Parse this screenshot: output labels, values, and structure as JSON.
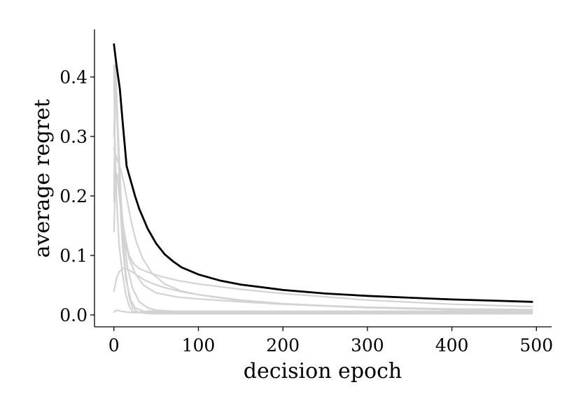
{
  "chart_data": {
    "type": "line",
    "title": "",
    "xlabel": "decision epoch",
    "ylabel": "average regret",
    "xlim": [
      -23,
      518
    ],
    "ylim": [
      -0.02,
      0.48
    ],
    "xticks": [
      0,
      100,
      200,
      300,
      400,
      500
    ],
    "xtick_labels": [
      "0",
      "100",
      "200",
      "300",
      "400",
      "500"
    ],
    "yticks": [
      0.0,
      0.1,
      0.2,
      0.3,
      0.4
    ],
    "ytick_labels": [
      "0.0",
      "0.1",
      "0.2",
      "0.3",
      "0.4"
    ],
    "grid": false,
    "legend": "none",
    "colors": {
      "main": "#000000",
      "background_runs": "#d3d3d3"
    },
    "main_series": {
      "x": [
        0,
        3,
        7,
        10,
        15,
        20,
        25,
        30,
        40,
        50,
        60,
        70,
        80,
        100,
        125,
        150,
        200,
        250,
        300,
        350,
        400,
        450,
        495
      ],
      "y": [
        0.455,
        0.42,
        0.38,
        0.33,
        0.25,
        0.225,
        0.2,
        0.178,
        0.145,
        0.12,
        0.102,
        0.09,
        0.08,
        0.068,
        0.058,
        0.051,
        0.042,
        0.036,
        0.032,
        0.029,
        0.026,
        0.024,
        0.022
      ]
    },
    "background_series": [
      {
        "x": [
          0,
          2,
          4,
          7,
          10,
          14,
          18,
          22,
          28,
          35,
          45,
          60,
          100,
          200,
          300,
          400,
          495
        ],
        "y": [
          0.2,
          0.41,
          0.34,
          0.24,
          0.14,
          0.07,
          0.03,
          0.012,
          0.005,
          0.003,
          0.002,
          0.002,
          0.002,
          0.002,
          0.002,
          0.002,
          0.002
        ]
      },
      {
        "x": [
          0,
          2,
          4,
          7,
          10,
          14,
          20,
          25,
          35,
          50,
          80,
          150,
          300,
          495
        ],
        "y": [
          0.38,
          0.42,
          0.32,
          0.2,
          0.12,
          0.06,
          0.025,
          0.012,
          0.006,
          0.004,
          0.004,
          0.004,
          0.004,
          0.004
        ]
      },
      {
        "x": [
          0,
          2,
          5,
          8,
          12,
          16,
          22,
          30,
          40,
          50,
          70,
          100,
          200,
          300,
          495
        ],
        "y": [
          0.3,
          0.41,
          0.3,
          0.2,
          0.13,
          0.08,
          0.045,
          0.022,
          0.012,
          0.008,
          0.006,
          0.006,
          0.006,
          0.006,
          0.006
        ]
      },
      {
        "x": [
          0,
          2,
          4,
          8,
          12,
          18,
          25,
          35,
          50,
          75,
          100,
          150,
          200,
          300,
          400,
          495
        ],
        "y": [
          0.14,
          0.24,
          0.23,
          0.18,
          0.13,
          0.095,
          0.07,
          0.05,
          0.037,
          0.03,
          0.027,
          0.022,
          0.018,
          0.013,
          0.01,
          0.009
        ]
      },
      {
        "x": [
          0,
          2,
          4,
          6,
          8,
          10,
          14,
          18,
          24,
          30,
          40,
          55,
          75,
          100,
          150,
          200,
          300,
          400,
          495
        ],
        "y": [
          0.19,
          0.24,
          0.235,
          0.21,
          0.185,
          0.16,
          0.125,
          0.1,
          0.085,
          0.078,
          0.072,
          0.065,
          0.058,
          0.052,
          0.043,
          0.036,
          0.025,
          0.018,
          0.014
        ]
      },
      {
        "x": [
          0,
          4,
          8,
          12,
          16,
          20,
          26,
          34,
          45,
          60,
          80,
          100,
          150,
          200,
          300,
          400,
          495
        ],
        "y": [
          0.28,
          0.26,
          0.245,
          0.22,
          0.19,
          0.16,
          0.125,
          0.095,
          0.07,
          0.052,
          0.04,
          0.034,
          0.024,
          0.018,
          0.012,
          0.009,
          0.008
        ]
      },
      {
        "x": [
          0,
          3,
          6,
          10,
          14,
          20,
          28,
          36,
          45,
          60,
          80,
          100,
          150,
          200,
          300,
          400,
          495
        ],
        "y": [
          0.04,
          0.062,
          0.072,
          0.078,
          0.078,
          0.074,
          0.066,
          0.059,
          0.053,
          0.046,
          0.039,
          0.034,
          0.025,
          0.019,
          0.012,
          0.009,
          0.008
        ]
      },
      {
        "x": [
          0,
          3,
          6,
          10,
          15,
          20,
          30,
          40,
          55,
          80,
          120,
          200,
          300,
          400,
          495
        ],
        "y": [
          0.005,
          0.008,
          0.007,
          0.006,
          0.005,
          0.004,
          0.004,
          0.005,
          0.005,
          0.005,
          0.005,
          0.005,
          0.005,
          0.005,
          0.005
        ]
      },
      {
        "x": [
          0,
          1,
          3,
          6,
          10,
          14,
          18,
          22,
          28,
          35,
          50,
          80,
          150,
          300,
          495
        ],
        "y": [
          0.42,
          0.3,
          0.2,
          0.12,
          0.07,
          0.035,
          0.015,
          0.006,
          0.004,
          0.006,
          0.007,
          0.006,
          0.006,
          0.006,
          0.006
        ]
      }
    ]
  }
}
